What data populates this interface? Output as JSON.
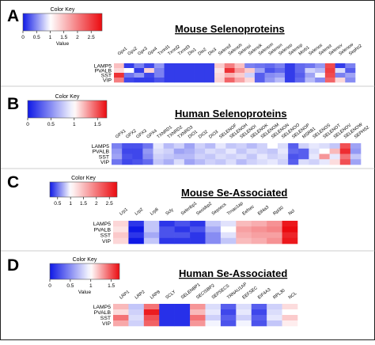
{
  "panels": [
    {
      "letter": "A",
      "title": "Mouse Selenoproteins",
      "color_key": {
        "title": "Color Key",
        "axis_label": "Value",
        "ticks": [
          "0",
          "0.5",
          "1",
          "1.5",
          "2",
          "2.5"
        ],
        "min": 0,
        "max": 2.9,
        "center": 1
      },
      "rows": [
        "LAMP5",
        "PVALB",
        "SST",
        "VIP"
      ],
      "columns": [
        "Gpx1",
        "Gpx2",
        "Gpx3",
        "Gpx4",
        "Txnrd1",
        "Txnrd2",
        "Txnrd3",
        "Dio1",
        "Dio2",
        "Dio3",
        "Selenof",
        "Selenoh",
        "Selenoi",
        "Selenok",
        "Selenom",
        "Selenon",
        "Selenoo",
        "Selenop",
        "Msrb1",
        "Selenos",
        "Selenot",
        "Selenov",
        "Selenow",
        "Sephs2"
      ],
      "values": [
        [
          1.5,
          0.15,
          0.45,
          0.2,
          0.55,
          0.15,
          0.15,
          0.15,
          0.15,
          0.15,
          1.4,
          2.0,
          1.5,
          0.45,
          0.4,
          0.35,
          0.45,
          0.15,
          0.35,
          0.4,
          0.55,
          2.4,
          0.15,
          0.45
        ],
        [
          1.3,
          1.0,
          0.15,
          1.35,
          0.45,
          0.15,
          0.15,
          0.15,
          0.15,
          0.15,
          1.2,
          2.6,
          1.8,
          1.4,
          0.6,
          0.25,
          0.35,
          0.15,
          0.35,
          0.8,
          0.7,
          2.5,
          0.85,
          0.3
        ],
        [
          2.6,
          0.4,
          0.55,
          0.2,
          0.45,
          0.15,
          0.15,
          0.15,
          0.15,
          0.15,
          1.3,
          1.6,
          1.4,
          0.8,
          0.3,
          0.5,
          0.55,
          0.15,
          0.3,
          0.6,
          0.95,
          2.4,
          0.45,
          0.6
        ],
        [
          2.0,
          0.2,
          0.15,
          0.15,
          0.25,
          0.15,
          0.15,
          0.15,
          0.15,
          0.15,
          1.35,
          2.2,
          1.7,
          1.3,
          0.3,
          0.55,
          0.7,
          0.15,
          0.35,
          0.7,
          0.5,
          2.2,
          1.3,
          0.5
        ]
      ]
    },
    {
      "letter": "B",
      "title": "Human Selenoproteins",
      "color_key": {
        "title": "Color Key",
        "axis_label": "",
        "ticks": [
          "0",
          "0.5",
          "1",
          "1.5"
        ],
        "min": 0,
        "max": 1.7,
        "center": 1
      },
      "rows": [
        "LAMP5",
        "PVALB",
        "SST",
        "VIP"
      ],
      "columns": [
        "GPX1",
        "GPX2",
        "GPX3",
        "GPX4",
        "TXNRD1",
        "TXNRD2",
        "TXNRD3",
        "DIO1",
        "DIO2",
        "DIO3",
        "SELENOF",
        "SELENOH",
        "SELENOI",
        "SELENOK",
        "SELENOM",
        "SELENON",
        "SELENOO",
        "SELENOP",
        "MSRB1",
        "SELENOS",
        "SELENOT",
        "SELENOV",
        "SELENOW",
        "SEPHS2"
      ],
      "values": [
        [
          0.45,
          0.25,
          0.25,
          0.4,
          0.9,
          0.7,
          0.8,
          0.6,
          0.8,
          0.7,
          0.9,
          0.75,
          0.8,
          0.7,
          0.8,
          1.0,
          0.85,
          0.3,
          0.8,
          0.9,
          0.85,
          0.75,
          1.5,
          0.6
        ],
        [
          0.55,
          0.2,
          0.2,
          0.55,
          0.85,
          0.8,
          0.6,
          0.65,
          0.75,
          0.85,
          0.8,
          0.9,
          0.75,
          0.85,
          0.8,
          0.75,
          0.9,
          0.35,
          0.3,
          0.85,
          1.0,
          1.2,
          1.6,
          0.55
        ],
        [
          0.6,
          0.25,
          0.2,
          0.5,
          0.8,
          0.75,
          0.7,
          0.7,
          0.8,
          0.75,
          0.85,
          0.8,
          0.85,
          0.75,
          0.9,
          0.8,
          0.85,
          0.25,
          0.3,
          0.9,
          1.3,
          0.9,
          1.4,
          0.75
        ],
        [
          0.4,
          0.2,
          0.25,
          0.35,
          0.75,
          0.65,
          0.85,
          0.6,
          0.7,
          0.8,
          0.75,
          0.85,
          0.7,
          0.8,
          0.85,
          0.9,
          0.8,
          0.3,
          0.85,
          0.8,
          0.9,
          1.1,
          1.5,
          0.6
        ]
      ]
    },
    {
      "letter": "C",
      "title": "Mouse Se-Associated",
      "color_key": {
        "title": "Color Key",
        "axis_label": "",
        "ticks": [
          "0.5",
          "1",
          "1.5",
          "2",
          "2.5"
        ],
        "min": 0.2,
        "max": 2.8,
        "center": 1
      },
      "rows": [
        "LAMP5",
        "PVALB",
        "SST",
        "VIP"
      ],
      "columns": [
        "Lrp1",
        "Lrp2",
        "Lrp8",
        "Scly",
        "Selenbp1",
        "Secisbp2",
        "Sepsecs",
        "Trnau1ap",
        "Eefsec",
        "Eif4a3",
        "Rpl30",
        "Ncl"
      ],
      "values": [
        [
          1.3,
          0.3,
          0.8,
          0.3,
          0.4,
          0.3,
          0.8,
          0.9,
          1.5,
          1.6,
          1.8,
          2.7
        ],
        [
          1.2,
          0.2,
          0.8,
          0.4,
          0.3,
          0.4,
          0.7,
          1.0,
          1.7,
          1.8,
          1.9,
          2.8
        ],
        [
          1.4,
          0.3,
          0.7,
          0.4,
          0.4,
          0.3,
          0.6,
          0.9,
          1.6,
          1.7,
          1.7,
          2.6
        ],
        [
          1.3,
          0.2,
          0.8,
          0.3,
          0.3,
          0.3,
          0.6,
          0.8,
          1.5,
          1.6,
          1.8,
          2.7
        ]
      ]
    },
    {
      "letter": "D",
      "title": "Human Se-Associated",
      "color_key": {
        "title": "Color Key",
        "axis_label": "Value",
        "ticks": [
          "0",
          "0.5",
          "1",
          "1.5"
        ],
        "min": 0,
        "max": 1.7,
        "center": 1
      },
      "rows": [
        "LAMP5",
        "PVALB",
        "SST",
        "VIP"
      ],
      "columns": [
        "LRP1",
        "LRP2",
        "LRP8",
        "SCLY",
        "SELENBP1",
        "SECISBP2",
        "SEPSECS",
        "TRNAU1AP",
        "EEFSEC",
        "EIF4A3",
        "RPL30",
        "NCL"
      ],
      "values": [
        [
          1.2,
          0.75,
          1.4,
          0.1,
          0.1,
          1.3,
          0.85,
          0.3,
          0.85,
          0.3,
          0.8,
          1.1
        ],
        [
          1.1,
          0.8,
          1.65,
          0.1,
          0.1,
          1.2,
          0.9,
          0.2,
          0.9,
          0.2,
          0.85,
          1.0
        ],
        [
          1.4,
          0.85,
          1.5,
          0.1,
          0.1,
          1.4,
          0.8,
          0.3,
          0.8,
          0.3,
          0.9,
          1.15
        ],
        [
          1.25,
          0.8,
          1.45,
          0.1,
          0.1,
          1.3,
          0.95,
          0.25,
          0.95,
          0.25,
          0.75,
          1.05
        ]
      ]
    }
  ],
  "chart_data": [
    {
      "type": "heatmap",
      "title": "Mouse Selenoproteins"
    },
    {
      "type": "heatmap",
      "title": "Human Selenoproteins"
    },
    {
      "type": "heatmap",
      "title": "Mouse Se-Associated"
    },
    {
      "type": "heatmap",
      "title": "Human Se-Associated"
    }
  ]
}
